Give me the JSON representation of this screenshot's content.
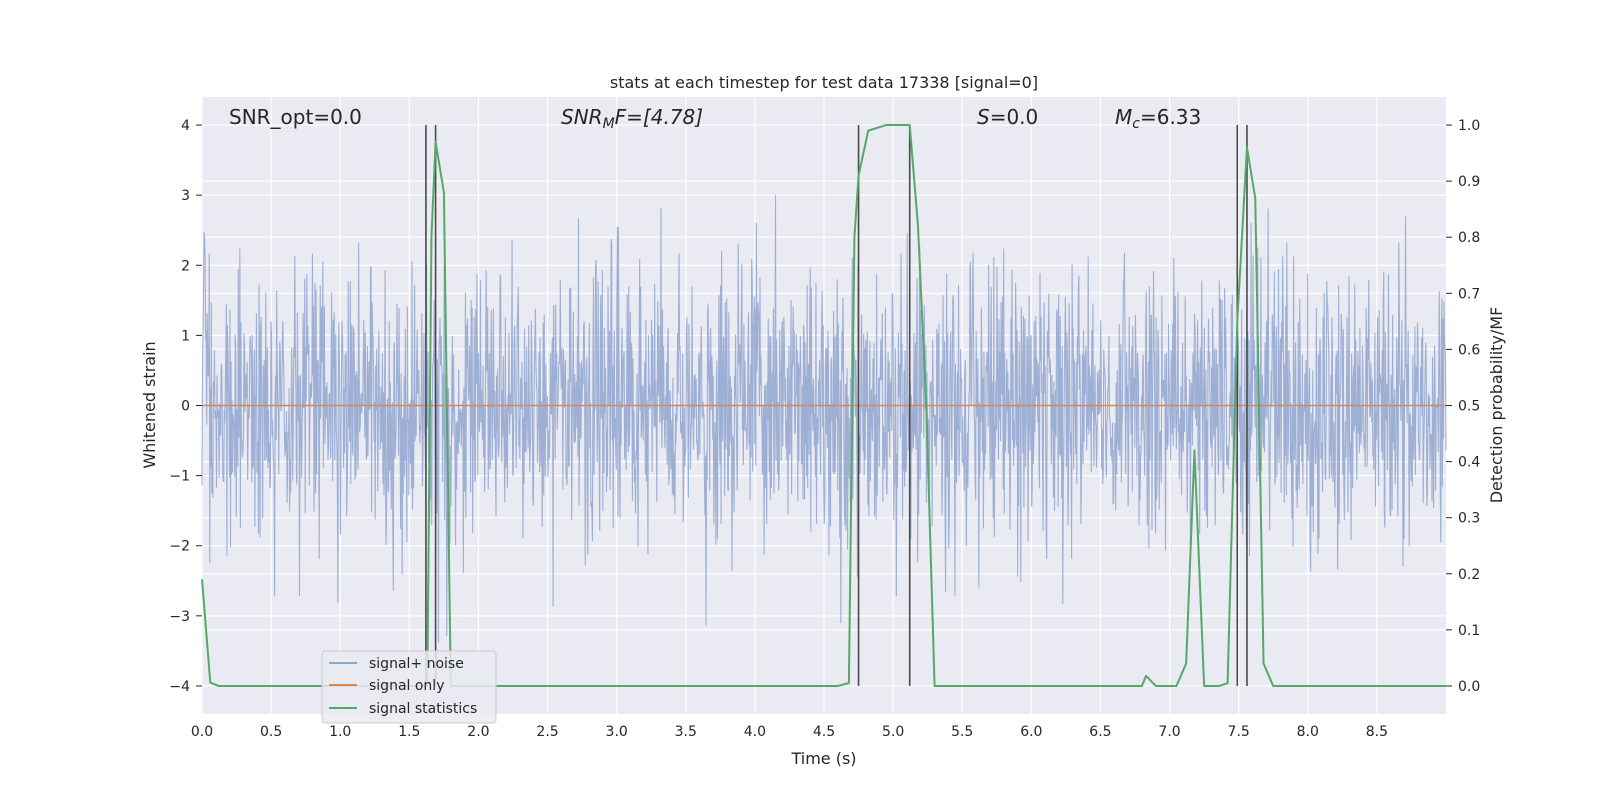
{
  "chart_data": {
    "type": "line",
    "title": "stats at each timestep for test data 17338 [signal=0]",
    "xlabel": "Time (s)",
    "ylabel": "Whitened strain",
    "y2label": "Detection probability/MF",
    "xlim": [
      0,
      9
    ],
    "ylim": [
      -4.4,
      4.4
    ],
    "y2lim": [
      -0.05,
      1.05
    ],
    "x_ticks": [
      "0.0",
      "0.5",
      "1.0",
      "1.5",
      "2.0",
      "2.5",
      "3.0",
      "3.5",
      "4.0",
      "4.5",
      "5.0",
      "5.5",
      "6.0",
      "6.5",
      "7.0",
      "7.5",
      "8.0",
      "8.5"
    ],
    "y_ticks": [
      "4",
      "3",
      "2",
      "1",
      "0",
      "−1",
      "−2",
      "−3",
      "−4"
    ],
    "y2_ticks": [
      "1.0",
      "0.9",
      "0.8",
      "0.7",
      "0.6",
      "0.5",
      "0.4",
      "0.3",
      "0.2",
      "0.1",
      "0.0"
    ],
    "grid": true,
    "legend_position": "lower-left",
    "annotations": {
      "snr_opt": "SNR_opt=0.0",
      "snr_mf_main": "SNR",
      "snr_mf_sub": "M",
      "snr_mf_rest": "F=[4.78]",
      "s_main": "S",
      "s_rest": "=0.0",
      "mc_main": "M",
      "mc_sub": "c",
      "mc_rest": "=6.33"
    },
    "vertical_markers": [
      1.62,
      1.69,
      4.75,
      5.12,
      7.49,
      7.56
    ],
    "series": [
      {
        "name": "signal+ noise",
        "color": "#8fa4cf",
        "axis": "left",
        "description_stats": {
          "std": 1.0,
          "typical_envelope": [
            -2.5,
            2.5
          ],
          "extremes": [
            -3.9,
            4.0
          ]
        }
      },
      {
        "name": "signal only",
        "color": "#dd8452",
        "axis": "left",
        "x": [
          0,
          9
        ],
        "y": [
          0,
          0
        ]
      },
      {
        "name": "signal statistics",
        "color": "#55a868",
        "axis": "right",
        "x": [
          0.0,
          0.06,
          0.12,
          0.2,
          0.5,
          1.0,
          1.5,
          1.62,
          1.63,
          1.66,
          1.69,
          1.75,
          1.8,
          1.9,
          2.3,
          3.0,
          4.0,
          4.6,
          4.68,
          4.72,
          4.75,
          4.82,
          4.95,
          5.05,
          5.12,
          5.18,
          5.24,
          5.3,
          5.5,
          6.0,
          6.5,
          6.8,
          6.83,
          6.9,
          6.95,
          7.05,
          7.12,
          7.18,
          7.25,
          7.3,
          7.36,
          7.42,
          7.49,
          7.56,
          7.62,
          7.68,
          7.75,
          8.0,
          8.5,
          9.0
        ],
        "y": [
          0.19,
          0.006,
          0.0,
          0.0,
          0.0,
          0.0,
          0.0,
          0.0,
          0.0,
          0.8,
          0.97,
          0.88,
          0.0,
          0.0,
          0.0,
          0.0,
          0.0,
          0.0,
          0.005,
          0.8,
          0.91,
          0.99,
          1.0,
          1.0,
          1.0,
          0.82,
          0.5,
          0.0,
          0.0,
          0.0,
          0.0,
          0.0,
          0.018,
          0.0,
          0.0,
          0.0,
          0.04,
          0.42,
          0.0,
          0.0,
          0.0,
          0.005,
          0.65,
          0.96,
          0.87,
          0.04,
          0.0,
          0.0,
          0.0,
          0.0
        ]
      }
    ]
  }
}
